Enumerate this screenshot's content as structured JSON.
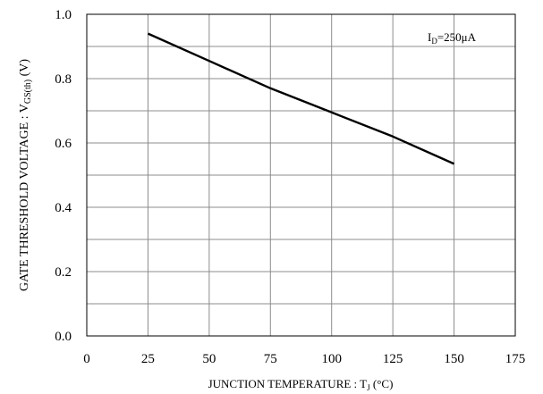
{
  "chart_data": {
    "type": "line",
    "xlabel": "JUNCTION TEMPERATURE : T",
    "xlabel_sub": "J",
    "xlabel_unit": " (°C)",
    "ylabel": "GATE THRESHOLD VOLTAGE : V",
    "ylabel_sub": "GS(th)",
    "ylabel_unit": " (V)",
    "annotation": {
      "main": "I",
      "sub": "D",
      "rest": "=250μA"
    },
    "xlim": [
      0,
      175
    ],
    "ylim": [
      0,
      1.0
    ],
    "x_ticks": [
      "0",
      "25",
      "50",
      "75",
      "100",
      "125",
      "150",
      "175"
    ],
    "y_ticks": [
      "0.0",
      "0.2",
      "0.4",
      "0.6",
      "0.8",
      "1.0"
    ],
    "x_grid": [
      0,
      25,
      50,
      75,
      100,
      125,
      150,
      175
    ],
    "y_grid": [
      0,
      0.1,
      0.2,
      0.3,
      0.4,
      0.5,
      0.6,
      0.7,
      0.8,
      0.9,
      1.0
    ],
    "grid": true,
    "series": [
      {
        "x": [
          25,
          50,
          75,
          100,
          125,
          150
        ],
        "y": [
          0.94,
          0.855,
          0.77,
          0.695,
          0.62,
          0.535
        ]
      }
    ]
  }
}
